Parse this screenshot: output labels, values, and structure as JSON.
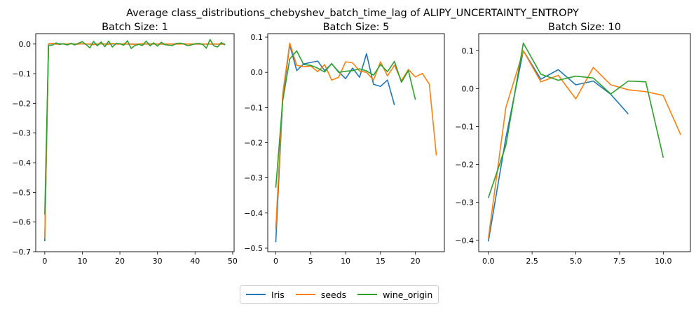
{
  "figure": {
    "suptitle": "Average class_distributions_chebyshev_batch_time_lag of ALIPY_UNCERTAINTY_ENTROPY"
  },
  "legend": {
    "placement": "bottom-center",
    "entries": [
      {
        "name": "Iris",
        "color": "#1f77b4"
      },
      {
        "name": "seeds",
        "color": "#ff7f0e"
      },
      {
        "name": "wine_origin",
        "color": "#2ca02c"
      }
    ]
  },
  "chart_data": [
    {
      "type": "line",
      "title": "Batch Size: 1",
      "xlabel": "",
      "ylabel": "",
      "xlim": [
        -2.4,
        50.4
      ],
      "ylim": [
        -0.7,
        0.035
      ],
      "xticks": [
        0,
        10,
        20,
        30,
        40,
        50
      ],
      "xtick_labels": [
        "0",
        "10",
        "20",
        "30",
        "40",
        "50"
      ],
      "yticks": [
        -0.7,
        -0.6,
        -0.5,
        -0.4,
        -0.3,
        -0.2,
        -0.1,
        0.0
      ],
      "ytick_labels": [
        "−0.7",
        "−0.6",
        "−0.5",
        "−0.4",
        "−0.3",
        "−0.2",
        "−0.1",
        "0.0"
      ],
      "grid": false,
      "series": [
        {
          "name": "Iris",
          "color": "#1f77b4",
          "x": [
            0,
            1,
            2,
            3,
            4,
            5,
            6,
            7,
            8,
            9,
            10,
            11,
            12,
            13,
            14,
            15,
            16,
            17,
            18,
            19,
            20,
            21,
            22,
            23,
            24,
            25,
            26,
            27,
            28,
            29,
            30,
            31,
            32,
            33,
            34,
            35,
            36,
            37,
            38,
            39,
            40,
            41,
            42,
            43,
            44,
            45,
            46,
            47,
            48
          ],
          "y": [
            -0.665,
            0.0,
            0.001,
            0.0,
            0.001,
            0.0,
            -0.001,
            0.001,
            0.0,
            0.0,
            0.001,
            0.0,
            0.0,
            -0.001,
            0.0,
            0.001,
            0.0,
            0.0,
            0.001,
            0.0,
            0.0,
            0.0,
            0.0,
            0.0,
            -0.001,
            0.0,
            0.0,
            0.0,
            0.001,
            0.0,
            0.0,
            0.0,
            0.0,
            0.0,
            0.0,
            0.0,
            0.001,
            0.0,
            0.0,
            0.0,
            0.0,
            0.0,
            0.0,
            0.0,
            0.0,
            0.0,
            0.0,
            0.0,
            0.0
          ]
        },
        {
          "name": "seeds",
          "color": "#ff7f0e",
          "x": [
            0,
            1,
            2,
            3,
            4,
            5,
            6,
            7,
            8,
            9,
            10,
            11,
            12,
            13,
            14,
            15,
            16,
            17,
            18,
            19,
            20,
            21,
            22,
            23,
            24,
            25,
            26,
            27,
            28,
            29,
            30,
            31,
            32,
            33,
            34,
            35,
            36,
            37,
            38,
            39,
            40,
            41,
            42,
            43,
            44,
            45,
            46,
            47,
            48
          ],
          "y": [
            -0.655,
            0.001,
            0.002,
            0.0,
            -0.001,
            0.001,
            0.0,
            0.002,
            -0.001,
            0.0,
            0.001,
            0.0,
            0.0,
            -0.002,
            0.0,
            0.001,
            0.0,
            -0.001,
            0.002,
            0.0,
            0.0,
            0.001,
            0.0,
            0.0,
            -0.001,
            0.0,
            0.001,
            0.0,
            0.0,
            0.0,
            0.0,
            0.0,
            0.0,
            0.0,
            0.0,
            0.0,
            0.0,
            0.001,
            0.0,
            0.0,
            0.0,
            0.0,
            0.0,
            0.0,
            0.0,
            0.0,
            0.0,
            0.0,
            -0.001
          ]
        },
        {
          "name": "wine_origin",
          "color": "#2ca02c",
          "x": [
            0,
            1,
            2,
            3,
            4,
            5,
            6,
            7,
            8,
            9,
            10,
            11,
            12,
            13,
            14,
            15,
            16,
            17,
            18,
            19,
            20,
            21,
            22,
            23,
            24,
            25,
            26,
            27,
            28,
            29,
            30,
            31,
            32,
            33,
            34,
            35,
            36,
            37,
            38,
            39,
            40,
            41,
            42,
            43,
            44,
            45,
            46,
            47,
            48
          ],
          "y": [
            -0.575,
            -0.005,
            -0.004,
            0.004,
            -0.001,
            0.001,
            -0.003,
            0.002,
            -0.003,
            0.003,
            0.008,
            -0.002,
            -0.013,
            0.009,
            -0.006,
            0.007,
            -0.009,
            0.01,
            -0.01,
            0.002,
            0.001,
            -0.004,
            0.011,
            -0.015,
            -0.005,
            -0.001,
            -0.005,
            0.01,
            -0.006,
            0.004,
            -0.007,
            0.006,
            -0.002,
            -0.004,
            -0.005,
            0.002,
            0.003,
            0.001,
            -0.006,
            -0.003,
            0.001,
            0.002,
            -0.001,
            -0.014,
            0.015,
            -0.006,
            -0.01,
            0.005,
            -0.003
          ]
        }
      ]
    },
    {
      "type": "line",
      "title": "Batch Size: 5",
      "xlabel": "",
      "ylabel": "",
      "xlim": [
        -1.15,
        24.15
      ],
      "ylim": [
        -0.51,
        0.11
      ],
      "xticks": [
        0,
        5,
        10,
        15,
        20
      ],
      "xtick_labels": [
        "0",
        "5",
        "10",
        "15",
        "20"
      ],
      "yticks": [
        -0.5,
        -0.4,
        -0.3,
        -0.2,
        -0.1,
        0.0,
        0.1
      ],
      "ytick_labels": [
        "−0.5",
        "−0.4",
        "−0.3",
        "−0.2",
        "−0.1",
        "0.0",
        "0.1"
      ],
      "grid": false,
      "series": [
        {
          "name": "Iris",
          "color": "#1f77b4",
          "x": [
            0,
            1,
            2,
            3,
            4,
            5,
            6,
            7,
            8,
            9,
            10,
            11,
            12,
            13,
            14,
            15,
            16,
            17
          ],
          "y": [
            -0.483,
            -0.07,
            0.078,
            0.005,
            0.024,
            0.028,
            0.032,
            0.005,
            0.024,
            0.002,
            -0.018,
            0.012,
            -0.014,
            0.053,
            -0.034,
            -0.04,
            -0.022,
            -0.093
          ]
        },
        {
          "name": "seeds",
          "color": "#ff7f0e",
          "x": [
            0,
            1,
            2,
            3,
            4,
            5,
            6,
            7,
            8,
            9,
            10,
            11,
            12,
            13,
            14,
            15,
            16,
            17,
            18,
            19,
            20,
            21,
            22,
            23
          ],
          "y": [
            -0.446,
            -0.06,
            0.083,
            0.02,
            0.016,
            0.018,
            0.002,
            0.022,
            -0.022,
            -0.014,
            0.03,
            0.027,
            0.004,
            0.0,
            -0.022,
            0.03,
            -0.01,
            0.02,
            -0.024,
            0.008,
            -0.013,
            -0.003,
            -0.034,
            -0.236
          ]
        },
        {
          "name": "wine_origin",
          "color": "#2ca02c",
          "x": [
            0,
            1,
            2,
            3,
            4,
            5,
            6,
            7,
            8,
            9,
            10,
            11,
            12,
            13,
            14,
            15,
            16,
            17,
            18,
            19,
            20
          ],
          "y": [
            -0.328,
            -0.08,
            0.038,
            0.061,
            0.022,
            0.02,
            0.012,
            0.001,
            0.025,
            0.0,
            0.003,
            0.005,
            0.01,
            0.004,
            -0.008,
            0.022,
            0.002,
            0.031,
            -0.028,
            0.005,
            -0.078
          ]
        }
      ]
    },
    {
      "type": "line",
      "title": "Batch Size: 10",
      "xlabel": "",
      "ylabel": "",
      "xlim": [
        -0.55,
        11.55
      ],
      "ylim": [
        -0.43,
        0.145
      ],
      "xticks": [
        0,
        2.5,
        5,
        7.5,
        10
      ],
      "xtick_labels": [
        "0.0",
        "2.5",
        "5.0",
        "7.5",
        "10.0"
      ],
      "yticks": [
        -0.4,
        -0.3,
        -0.2,
        -0.1,
        0.0,
        0.1
      ],
      "ytick_labels": [
        "−0.4",
        "−0.3",
        "−0.2",
        "−0.1",
        "0.0",
        "0.1"
      ],
      "grid": false,
      "series": [
        {
          "name": "Iris",
          "color": "#1f77b4",
          "x": [
            0,
            1,
            2,
            3,
            4,
            5,
            6,
            7,
            8
          ],
          "y": [
            -0.403,
            -0.13,
            0.1,
            0.025,
            0.05,
            0.01,
            0.02,
            -0.015,
            -0.067
          ]
        },
        {
          "name": "seeds",
          "color": "#ff7f0e",
          "x": [
            0,
            1,
            2,
            3,
            4,
            5,
            6,
            7,
            8,
            9,
            10,
            11
          ],
          "y": [
            -0.395,
            -0.05,
            0.1,
            0.018,
            0.035,
            -0.027,
            0.056,
            0.01,
            -0.003,
            -0.008,
            -0.018,
            -0.122
          ]
        },
        {
          "name": "wine_origin",
          "color": "#2ca02c",
          "x": [
            0,
            1,
            2,
            3,
            4,
            5,
            6,
            7,
            8,
            9,
            10
          ],
          "y": [
            -0.288,
            -0.15,
            0.12,
            0.038,
            0.022,
            0.033,
            0.028,
            -0.014,
            0.02,
            0.018,
            -0.182
          ]
        }
      ]
    }
  ]
}
